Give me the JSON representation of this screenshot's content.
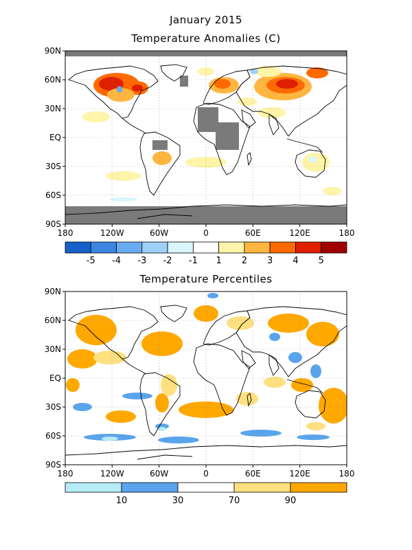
{
  "header": {
    "title": "January 2015",
    "subtitle": "Temperature Anomalies (C)"
  },
  "panel2": {
    "title": "Temperature Percentiles"
  },
  "axes": {
    "lat_labels": [
      "90N",
      "60N",
      "30N",
      "EQ",
      "30S",
      "60S",
      "90S"
    ],
    "lon_labels": [
      "180",
      "120W",
      "60W",
      "0",
      "60E",
      "120E",
      "180"
    ]
  },
  "anomaly_legend": {
    "labels": [
      "-5",
      "-4",
      "-3",
      "-2",
      "-1",
      "1",
      "2",
      "3",
      "4",
      "5"
    ],
    "colors": [
      "#1660c8",
      "#3a86e0",
      "#6aaaf0",
      "#9ed0f8",
      "#d8f6fb",
      "#ffffff",
      "#fff4a8",
      "#ffb640",
      "#ff6a00",
      "#e01e00",
      "#a00000"
    ]
  },
  "percentile_legend": {
    "labels": [
      "10",
      "30",
      "70",
      "90"
    ],
    "colors": [
      "#b6ecf6",
      "#5aa4ec",
      "#ffffff",
      "#ffe080",
      "#ffa800"
    ]
  },
  "colors": {
    "missing": "#7a7a7a",
    "coast": "#000000",
    "grid": "#888888"
  }
}
